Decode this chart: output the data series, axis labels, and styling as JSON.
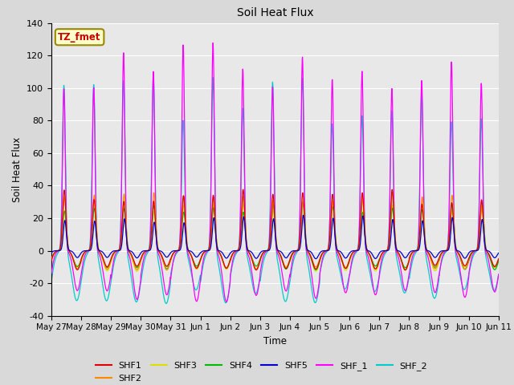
{
  "title": "Soil Heat Flux",
  "ylabel": "Soil Heat Flux",
  "xlabel": "Time",
  "ylim": [
    -40,
    140
  ],
  "annotation": "TZ_fmet",
  "annotation_color": "#cc0000",
  "annotation_bg": "#ffffcc",
  "annotation_border": "#998800",
  "bg_color": "#d9d9d9",
  "plot_bg": "#e8e8e8",
  "series": [
    "SHF1",
    "SHF2",
    "SHF3",
    "SHF4",
    "SHF5",
    "SHF_1",
    "SHF_2"
  ],
  "colors": {
    "SHF1": "#dd0000",
    "SHF2": "#ff8800",
    "SHF3": "#dddd00",
    "SHF4": "#00bb00",
    "SHF5": "#0000cc",
    "SHF_1": "#ff00ff",
    "SHF_2": "#00cccc"
  },
  "tick_labels": [
    "May 27",
    "May 28",
    "May 29",
    "May 30",
    "May 31",
    "Jun 1",
    "Jun 2",
    "Jun 3",
    "Jun 4",
    "Jun 5",
    "Jun 6",
    "Jun 7",
    "Jun 8",
    "Jun 9",
    "Jun 10",
    "Jun 11"
  ],
  "yticks": [
    -40,
    -20,
    0,
    20,
    40,
    60,
    80,
    100,
    120,
    140
  ],
  "num_days": 15
}
